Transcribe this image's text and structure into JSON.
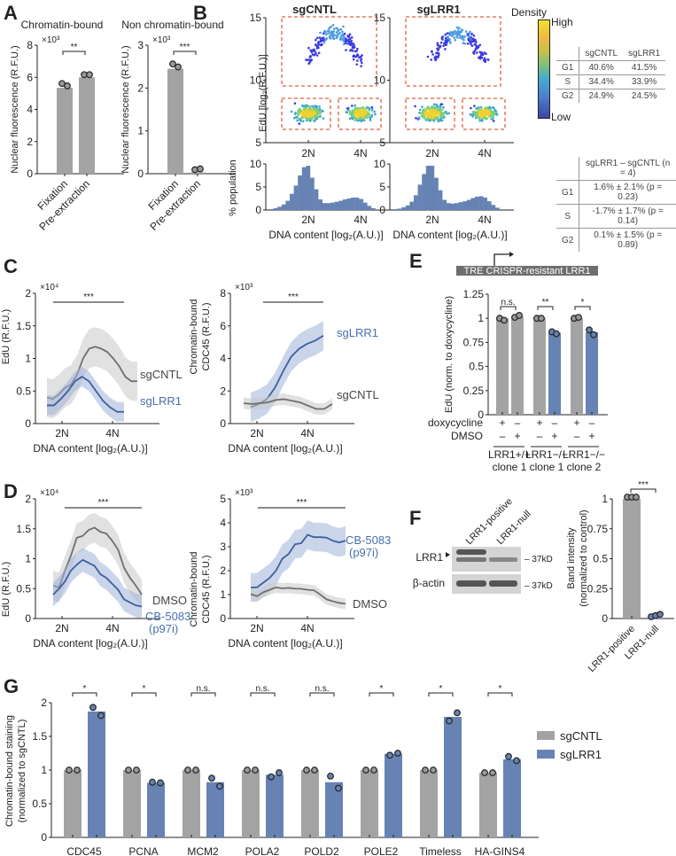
{
  "panels": {
    "A": {
      "letter": "A"
    },
    "B": {
      "letter": "B"
    },
    "C": {
      "letter": "C"
    },
    "D": {
      "letter": "D"
    },
    "E": {
      "letter": "E"
    },
    "F": {
      "letter": "F"
    },
    "G": {
      "letter": "G"
    }
  },
  "colors": {
    "gray": "#a3a3a3",
    "blue": "#6783b3",
    "line_gray": "#6e6e6e",
    "line_blue": "#3e5f9e",
    "gate": "#e06040",
    "text_blue": "#4a6fab"
  },
  "chart_data": [
    {
      "id": "A1",
      "type": "bar",
      "title": "Chromatin-bound",
      "ylabel": "Nuclear fluorescence (R.F.U.)",
      "multiplier": "×10³",
      "categories": [
        "Fixation",
        "Pre-extraction"
      ],
      "values": [
        5.35,
        6.0
      ],
      "points": [
        [
          5.45,
          5.3
        ],
        [
          6.0,
          6.0
        ]
      ],
      "ylim": [
        0,
        8
      ],
      "yticks": [
        "0",
        "2",
        "4",
        "6",
        "8"
      ],
      "significance": "**"
    },
    {
      "id": "A2",
      "type": "bar",
      "title": "Non chromatin-bound",
      "ylabel": "Nuclear fluorescence (R.F.U.)",
      "multiplier": "×10³",
      "categories": [
        "Fixation",
        "Pre-extraction"
      ],
      "values": [
        2.45,
        0.03
      ],
      "points": [
        [
          2.5,
          2.43
        ],
        [
          0.03,
          0.05
        ]
      ],
      "ylim": [
        0,
        3
      ],
      "yticks": [
        "0",
        "1",
        "2",
        "3"
      ],
      "significance": "***"
    },
    {
      "id": "B-scatter",
      "type": "scatter",
      "panels": [
        "sgCNTL",
        "sgLRR1"
      ],
      "ylabel": "EdU [log₂(R.F.U.)]",
      "yticks": [
        "5",
        "10",
        "15"
      ],
      "ylim": [
        5,
        15
      ],
      "xticks": [
        "2N",
        "4N"
      ],
      "colorbar": {
        "title": "Density",
        "high": "High",
        "low": "Low"
      }
    },
    {
      "id": "B-hist",
      "type": "bar",
      "ylabel": "% population",
      "yticks": [
        "0",
        "5",
        "10"
      ],
      "ylim": [
        0,
        11
      ],
      "xlabel": "DNA content [log₂(A.U.)]",
      "xticks": [
        "2N",
        "4N"
      ],
      "series": [
        {
          "name": "sgCNTL",
          "values": [
            0.2,
            0.4,
            0.7,
            1.2,
            2.0,
            3.5,
            5.3,
            7.5,
            9.3,
            9.6,
            7.0,
            4.5,
            2.3,
            1.5,
            1.5,
            1.6,
            1.8,
            2.0,
            2.3,
            2.5,
            2.7,
            2.7,
            2.4,
            1.6,
            0.9,
            0.4
          ]
        },
        {
          "name": "sgLRR1",
          "values": [
            0.2,
            0.3,
            0.6,
            1.0,
            1.8,
            3.2,
            5.5,
            7.8,
            9.6,
            9.6,
            7.0,
            4.3,
            2.2,
            1.5,
            1.4,
            1.5,
            1.7,
            1.9,
            2.2,
            2.6,
            2.9,
            3.0,
            2.7,
            1.9,
            1.1,
            0.5
          ]
        }
      ]
    },
    {
      "id": "C1",
      "type": "line",
      "ylabel": "EdU (R.F.U.)",
      "multiplier": "×10⁴",
      "ylim": [
        0,
        2
      ],
      "yticks": [
        "0",
        "0.5",
        "1",
        "1.5",
        "2"
      ],
      "xticks": [
        "2N",
        "4N"
      ],
      "xlabel": "DNA content [log₂(A.U.)]",
      "significance": "***",
      "series": [
        {
          "name": "sgCNTL",
          "values": [
            0.4,
            0.38,
            0.45,
            0.55,
            0.6,
            0.75,
            1.0,
            1.15,
            1.18,
            1.15,
            1.1,
            1.0,
            0.88,
            0.72,
            0.65,
            0.65
          ],
          "ci": 0.3
        },
        {
          "name": "sgLRR1",
          "values": [
            0.28,
            0.28,
            0.38,
            0.5,
            0.65,
            0.72,
            0.65,
            0.5,
            0.35,
            0.25,
            0.18,
            0.18
          ],
          "ci": 0.15
        }
      ]
    },
    {
      "id": "C2",
      "type": "line",
      "ylabel": "Chromatin-bound CDC45 (R.F.U.)",
      "multiplier": "×10³",
      "ylim": [
        0,
        8
      ],
      "yticks": [
        "0",
        "2",
        "4",
        "6",
        "8"
      ],
      "xticks": [
        "2N",
        "4N"
      ],
      "xlabel": "DNA content [log₂(A.U.)]",
      "significance": "***",
      "series": [
        {
          "name": "sgLRR1",
          "values": [
            1.0,
            1.2,
            1.5,
            2.2,
            3.2,
            4.1,
            4.6,
            4.9,
            5.1,
            5.4
          ],
          "ci": 0.9
        },
        {
          "name": "sgCNTL",
          "values": [
            1.25,
            1.2,
            1.25,
            1.3,
            1.45,
            1.5,
            1.4,
            1.3,
            1.1,
            0.9,
            0.9,
            1.2
          ],
          "ci": 0.35
        }
      ]
    },
    {
      "id": "D1",
      "type": "line",
      "ylabel": "EdU (R.F.U.)",
      "multiplier": "×10⁴",
      "ylim": [
        0,
        2
      ],
      "yticks": [
        "0",
        "0.5",
        "1",
        "1.5",
        "2"
      ],
      "xticks": [
        "2N",
        "4N"
      ],
      "xlabel": "DNA content [log₂(A.U.)]",
      "significance": "***",
      "series": [
        {
          "name": "DMSO",
          "values": [
            0.55,
            0.52,
            0.8,
            1.05,
            1.35,
            1.38,
            1.48,
            1.52,
            1.45,
            1.42,
            1.3,
            1.15,
            0.85,
            0.68,
            0.55,
            0.4
          ],
          "ci": 0.25
        },
        {
          "name": "CB-5083 (p97i)",
          "values": [
            0.4,
            0.5,
            0.62,
            0.8,
            0.9,
            0.98,
            0.93,
            0.88,
            0.74,
            0.68,
            0.58,
            0.48,
            0.32,
            0.27,
            0.22,
            0.2
          ],
          "ci": 0.2
        }
      ]
    },
    {
      "id": "D2",
      "type": "line",
      "ylabel": "Chromatin-bound CDC45 (R.F.U.)",
      "multiplier": "×10³",
      "ylim": [
        0,
        5
      ],
      "yticks": [
        "0",
        "1",
        "2",
        "3",
        "4",
        "5"
      ],
      "xticks": [
        "2N",
        "4N"
      ],
      "xlabel": "DNA content [log₂(A.U.)]",
      "significance": "***",
      "series": [
        {
          "name": "CB-5083 (p97i)",
          "values": [
            1.3,
            1.3,
            1.5,
            1.7,
            2.0,
            2.5,
            2.7,
            3.1,
            3.15,
            3.5,
            3.4,
            3.4,
            3.38,
            3.25,
            3.18,
            3.25
          ],
          "ci": 0.6
        },
        {
          "name": "DMSO",
          "values": [
            1.02,
            0.93,
            1.1,
            1.2,
            1.3,
            1.26,
            1.28,
            1.25,
            1.24,
            1.2,
            1.18,
            1.0,
            0.8,
            0.72,
            0.65,
            0.62
          ],
          "ci": 0.22
        }
      ]
    },
    {
      "id": "E",
      "type": "bar",
      "ylabel": "EdU (norm. to doxycycline)",
      "ylim": [
        0,
        1.25
      ],
      "yticks": [
        "0",
        "0.25",
        "0.5",
        "0.75",
        "1",
        "1.25"
      ],
      "construct": "TRE CRISPR-resistant LRR1",
      "row_labels": [
        "doxycycline",
        "DMSO"
      ],
      "groups": [
        {
          "genotype": "LRR1+/+",
          "clone": "clone 1",
          "values": [
            1.0,
            1.02
          ],
          "points": [
            [
              1.0,
              0.98
            ],
            [
              1.01,
              1.03
            ]
          ],
          "signs": [
            [
              "+",
              "–"
            ],
            [
              "–",
              "+"
            ]
          ],
          "significance": "n.s."
        },
        {
          "genotype": "LRR1−/−",
          "clone": "clone 1",
          "values": [
            1.0,
            0.85
          ],
          "points": [
            [
              1.0,
              1.0
            ],
            [
              0.86,
              0.84
            ]
          ],
          "signs": [
            [
              "+",
              "–"
            ],
            [
              "–",
              "+"
            ]
          ],
          "significance": "**"
        },
        {
          "genotype": "LRR1−/−",
          "clone": "clone 2",
          "values": [
            1.0,
            0.855
          ],
          "points": [
            [
              1.0,
              1.01
            ],
            [
              0.88,
              0.83
            ]
          ],
          "signs": [
            [
              "+",
              "–"
            ],
            [
              "–",
              "+"
            ]
          ],
          "significance": "*"
        }
      ]
    },
    {
      "id": "F",
      "type": "bar",
      "ylabel": "Band intensity (normalized to control)",
      "ylim": [
        0,
        1
      ],
      "yticks": [
        "0",
        "0.25",
        "0.5",
        "0.75",
        "1"
      ],
      "categories": [
        "LRR1-positive",
        "LRR1-null"
      ],
      "values": [
        1.0,
        0.01
      ],
      "points": [
        [
          1,
          1,
          1
        ],
        [
          0.0,
          0.01,
          0.02
        ]
      ],
      "significance": "***",
      "blot": {
        "lanes": [
          "LRR1-positive",
          "LRR1-null"
        ],
        "rows": [
          "LRR1",
          "β-actin"
        ],
        "marker": "37kD"
      }
    },
    {
      "id": "G",
      "type": "bar",
      "ylabel": "Chromatin-bound staining (normalized to sgCNTL)",
      "ylim": [
        0,
        2
      ],
      "yticks": [
        "0",
        "0.5",
        "1",
        "1.5",
        "2"
      ],
      "categories": [
        "CDC45",
        "PCNA",
        "MCM2",
        "POLA2",
        "POLD2",
        "POLE2",
        "Timeless",
        "HA-GINS4"
      ],
      "series": [
        {
          "name": "sgCNTL",
          "values": [
            1,
            1,
            1,
            1,
            1,
            1,
            1,
            0.96
          ],
          "points": [
            [
              1,
              1
            ],
            [
              1,
              1
            ],
            [
              1,
              1
            ],
            [
              1,
              1
            ],
            [
              1,
              1
            ],
            [
              1,
              1
            ],
            [
              1,
              1
            ],
            [
              0.96,
              0.96
            ]
          ]
        },
        {
          "name": "sgLRR1",
          "values": [
            1.87,
            0.81,
            0.82,
            0.93,
            0.82,
            1.24,
            1.79,
            1.16
          ],
          "points": [
            [
              1.93,
              1.81
            ],
            [
              0.82,
              0.81
            ],
            [
              0.88,
              0.76
            ],
            [
              0.9,
              0.96
            ],
            [
              0.91,
              0.73
            ],
            [
              1.22,
              1.25
            ],
            [
              1.73,
              1.85
            ],
            [
              1.2,
              1.14
            ]
          ]
        }
      ],
      "significance": [
        "*",
        "*",
        "n.s.",
        "n.s.",
        "n.s.",
        "*",
        "*",
        "*"
      ],
      "legend": "right"
    }
  ],
  "tables": {
    "B_top": {
      "headers": [
        "",
        "sgCNTL",
        "sgLRR1"
      ],
      "rows": [
        [
          "G1",
          "40.6%",
          "41.5%"
        ],
        [
          "S",
          "34.4%",
          "33.9%"
        ],
        [
          "G2",
          "24.9%",
          "24.5%"
        ]
      ]
    },
    "B_bottom": {
      "headers": [
        "",
        "sgLRR1 – sgCNTL (n = 4)"
      ],
      "rows": [
        [
          "G1",
          "1.6% ± 2.1% (p = 0.23)"
        ],
        [
          "S",
          "-1.7% ± 1.7% (p = 0.14)"
        ],
        [
          "G2",
          "0.1% ± 1.5% (p = 0.89)"
        ]
      ]
    }
  }
}
